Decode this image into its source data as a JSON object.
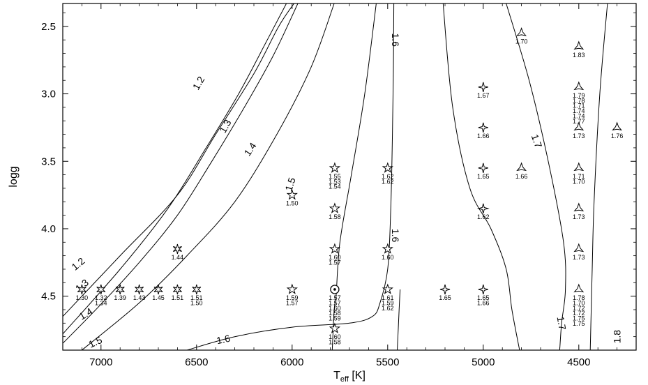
{
  "chart_data": {
    "type": "contour",
    "xlabel_main": "T",
    "xlabel_sub": "eff",
    "xlabel_unit": " [K]",
    "ylabel": "logg",
    "xlim": [
      7200,
      4200
    ],
    "ylim": [
      2.33,
      4.9
    ],
    "xticks": [
      7000,
      6500,
      6000,
      5500,
      5000,
      4500
    ],
    "xtick_labels": [
      "7000",
      "6500",
      "6000",
      "5500",
      "5000",
      "4500"
    ],
    "yticks": [
      2.5,
      3.0,
      3.5,
      4.0,
      4.5
    ],
    "ytick_labels": [
      "2.5",
      "3.0",
      "3.5",
      "4.0",
      "4.5"
    ],
    "grid": false,
    "contours": [
      {
        "level": "1.2",
        "points": [
          [
            7200,
            4.65
          ],
          [
            6900,
            4.2
          ],
          [
            6600,
            3.75
          ],
          [
            6400,
            3.3
          ],
          [
            6200,
            2.85
          ],
          [
            6070,
            2.5
          ],
          [
            5990,
            2.33
          ]
        ]
      },
      {
        "level": "1.3",
        "points": [
          [
            7200,
            4.78
          ],
          [
            6900,
            4.3
          ],
          [
            6650,
            3.85
          ],
          [
            6450,
            3.4
          ],
          [
            6280,
            3.0
          ],
          [
            6130,
            2.6
          ],
          [
            6030,
            2.33
          ]
        ]
      },
      {
        "level": "1.4",
        "points": [
          [
            7200,
            4.85
          ],
          [
            7000,
            4.56
          ],
          [
            6800,
            4.25
          ],
          [
            6600,
            3.9
          ],
          [
            6420,
            3.5
          ],
          [
            6250,
            3.1
          ],
          [
            6100,
            2.72
          ],
          [
            5970,
            2.33
          ]
        ]
      },
      {
        "level": "1.5",
        "points": [
          [
            7100,
            4.9
          ],
          [
            6800,
            4.55
          ],
          [
            6550,
            4.2
          ],
          [
            6300,
            3.8
          ],
          [
            6080,
            3.3
          ],
          [
            5900,
            2.8
          ],
          [
            5780,
            2.33
          ]
        ]
      },
      {
        "level": "1.6",
        "points": [
          [
            6550,
            4.9
          ],
          [
            6300,
            4.8
          ],
          [
            6000,
            4.73
          ],
          [
            5700,
            4.7
          ],
          [
            5580,
            4.65
          ],
          [
            5540,
            4.55
          ],
          [
            5500,
            4.3
          ],
          [
            5485,
            3.9
          ],
          [
            5475,
            3.3
          ],
          [
            5470,
            2.8
          ],
          [
            5468,
            2.33
          ]
        ]
      },
      {
        "level": "",
        "points": [
          [
            5790,
            4.9
          ],
          [
            5780,
            4.6
          ],
          [
            5770,
            4.5
          ],
          [
            5750,
            4.1
          ],
          [
            5690,
            3.6
          ],
          [
            5620,
            3.0
          ],
          [
            5560,
            2.33
          ]
        ]
      },
      {
        "level": "",
        "points": [
          [
            5450,
            4.9
          ],
          [
            5440,
            4.6
          ],
          [
            5435,
            4.45
          ]
        ]
      },
      {
        "level": "",
        "points": [
          [
            5210,
            2.33
          ],
          [
            5160,
            3.1
          ],
          [
            5070,
            3.7
          ],
          [
            4960,
            4.0
          ],
          [
            4880,
            4.3
          ],
          [
            4850,
            4.6
          ],
          [
            4810,
            4.9
          ]
        ]
      },
      {
        "level": "1.7",
        "points": [
          [
            4880,
            2.33
          ],
          [
            4760,
            2.9
          ],
          [
            4660,
            3.5
          ],
          [
            4580,
            4.1
          ],
          [
            4570,
            4.45
          ],
          [
            4590,
            4.7
          ],
          [
            4600,
            4.9
          ]
        ]
      },
      {
        "level": "",
        "points": [
          [
            4350,
            2.33
          ],
          [
            4390,
            3.0
          ],
          [
            4420,
            3.8
          ],
          [
            4430,
            4.3
          ],
          [
            4440,
            4.9
          ]
        ]
      }
    ],
    "contour_labels": [
      {
        "text": "1.2",
        "x": 6490,
        "y": 2.92,
        "angle": -60
      },
      {
        "text": "1.3",
        "x": 6350,
        "y": 3.24,
        "angle": -60
      },
      {
        "text": "1.4",
        "x": 6220,
        "y": 3.41,
        "angle": -55
      },
      {
        "text": "1.5",
        "x": 6010,
        "y": 3.67,
        "angle": -72
      },
      {
        "text": "1.6",
        "x": 5460,
        "y": 2.6,
        "angle": 90
      },
      {
        "text": "1.6",
        "x": 5460,
        "y": 4.05,
        "angle": 90
      },
      {
        "text": "1.7",
        "x": 4720,
        "y": 3.35,
        "angle": 70
      },
      {
        "text": "1.7",
        "x": 4590,
        "y": 4.7,
        "angle": 80
      },
      {
        "text": "1.2",
        "x": 7120,
        "y": 4.26,
        "angle": -40
      },
      {
        "text": "1.3",
        "x": 7100,
        "y": 4.42,
        "angle": -40
      },
      {
        "text": "1.4",
        "x": 7080,
        "y": 4.63,
        "angle": -30
      },
      {
        "text": "1.5",
        "x": 7030,
        "y": 4.84,
        "angle": -25
      },
      {
        "text": "1.6",
        "x": 6360,
        "y": 4.82,
        "angle": -12
      },
      {
        "text": "1.8",
        "x": 4300,
        "y": 4.8,
        "angle": -90
      }
    ],
    "points": [
      {
        "x": 7100,
        "y": 4.45,
        "symbol": "star6",
        "labels": [
          "1.30"
        ]
      },
      {
        "x": 7000,
        "y": 4.45,
        "symbol": "star6",
        "labels": [
          "1.32",
          "1.34"
        ]
      },
      {
        "x": 6900,
        "y": 4.45,
        "symbol": "star6",
        "labels": [
          "1.39"
        ]
      },
      {
        "x": 6800,
        "y": 4.45,
        "symbol": "star6",
        "labels": [
          "1.43"
        ]
      },
      {
        "x": 6700,
        "y": 4.45,
        "symbol": "star6",
        "labels": [
          "1.45"
        ]
      },
      {
        "x": 6600,
        "y": 4.45,
        "symbol": "star6",
        "labels": [
          "1.51"
        ]
      },
      {
        "x": 6600,
        "y": 4.15,
        "symbol": "star6",
        "labels": [
          "1.44"
        ]
      },
      {
        "x": 6500,
        "y": 4.45,
        "symbol": "star6",
        "labels": [
          "1.51",
          "1.50"
        ]
      },
      {
        "x": 6000,
        "y": 3.75,
        "symbol": "star5",
        "labels": [
          "1.50"
        ]
      },
      {
        "x": 6000,
        "y": 4.45,
        "symbol": "star5",
        "labels": [
          "1.59",
          "1.57"
        ]
      },
      {
        "x": 5777,
        "y": 3.55,
        "symbol": "star5",
        "labels": [
          "1.55",
          "1.53",
          "1.54"
        ]
      },
      {
        "x": 5777,
        "y": 3.85,
        "symbol": "star5",
        "labels": [
          "1.58"
        ]
      },
      {
        "x": 5777,
        "y": 4.15,
        "symbol": "star5",
        "labels": [
          "1.60",
          "1.57"
        ]
      },
      {
        "x": 5777,
        "y": 4.45,
        "symbol": "sun",
        "labels": [
          "1.57",
          "1.57",
          "1.60",
          "1.58",
          "1.59"
        ]
      },
      {
        "x": 5777,
        "y": 4.74,
        "symbol": "star5",
        "labels": [
          "1.60",
          "1.58"
        ]
      },
      {
        "x": 5500,
        "y": 3.55,
        "symbol": "star5",
        "labels": [
          "1.62",
          "1.62"
        ]
      },
      {
        "x": 5500,
        "y": 4.15,
        "symbol": "star5",
        "labels": [
          "1.60"
        ]
      },
      {
        "x": 5500,
        "y": 4.45,
        "symbol": "star5",
        "labels": [
          "1.61",
          "1.59",
          "1.62"
        ]
      },
      {
        "x": 5200,
        "y": 4.45,
        "symbol": "star4",
        "labels": [
          "1.65"
        ]
      },
      {
        "x": 5000,
        "y": 2.95,
        "symbol": "star4",
        "labels": [
          "1.67"
        ]
      },
      {
        "x": 5000,
        "y": 3.25,
        "symbol": "star4",
        "labels": [
          "1.66"
        ]
      },
      {
        "x": 5000,
        "y": 3.55,
        "symbol": "star4",
        "labels": [
          "1.65"
        ]
      },
      {
        "x": 5000,
        "y": 3.85,
        "symbol": "star4",
        "labels": [
          "1.62"
        ]
      },
      {
        "x": 5000,
        "y": 4.45,
        "symbol": "star4",
        "labels": [
          "1.65",
          "1.66"
        ]
      },
      {
        "x": 4800,
        "y": 2.55,
        "symbol": "star3",
        "labels": [
          "1.70"
        ]
      },
      {
        "x": 4800,
        "y": 3.55,
        "symbol": "star3",
        "labels": [
          "1.66"
        ]
      },
      {
        "x": 4500,
        "y": 2.65,
        "symbol": "star3",
        "labels": [
          "1.83"
        ]
      },
      {
        "x": 4500,
        "y": 2.95,
        "symbol": "star3",
        "labels": [
          "1.79",
          "1.78",
          "1.71",
          "1.74",
          "1.74",
          "1.77"
        ]
      },
      {
        "x": 4500,
        "y": 3.25,
        "symbol": "star3",
        "labels": [
          "1.73"
        ]
      },
      {
        "x": 4500,
        "y": 3.55,
        "symbol": "star3",
        "labels": [
          "1.71",
          "1.70"
        ]
      },
      {
        "x": 4500,
        "y": 3.85,
        "symbol": "star3",
        "labels": [
          "1.73"
        ]
      },
      {
        "x": 4500,
        "y": 4.15,
        "symbol": "star3",
        "labels": [
          "1.73"
        ]
      },
      {
        "x": 4500,
        "y": 4.45,
        "symbol": "star3",
        "labels": [
          "1.78",
          "1.70",
          "1.72",
          "1.72",
          "1.75",
          "1.75"
        ]
      },
      {
        "x": 4300,
        "y": 3.25,
        "symbol": "star3",
        "labels": [
          "1.76"
        ]
      }
    ]
  }
}
